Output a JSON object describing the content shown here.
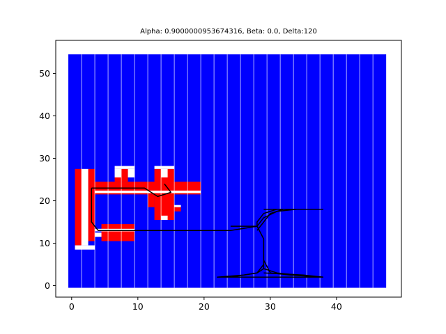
{
  "chart_data": {
    "type": "heatmap",
    "title": "Alpha: 0.9000000953674316, Beta: 0.0, Delta:120",
    "xlabel": "",
    "ylabel": "",
    "xlim": [
      -2.4,
      49.8
    ],
    "ylim": [
      -2.7,
      57.8
    ],
    "xticks": [
      0,
      10,
      20,
      30,
      40
    ],
    "yticks": [
      0,
      10,
      20,
      30,
      40,
      50
    ],
    "grid": false,
    "cell_grid": {
      "x_start": -0.5,
      "x_end": 47.5,
      "y_start": -0.5,
      "y_end": 54.5,
      "base_color": "#0000ff",
      "column_separator_color": "#ffffff",
      "column_separator_every": 2
    },
    "colors": {
      "blue": "#0000ff",
      "red": "#ff0000",
      "white": "#ffffff",
      "path": "#000000"
    },
    "red_regions": [
      [
        0.5,
        1.5,
        9.5,
        27.5
      ],
      [
        2.5,
        3.5,
        10.5,
        27.5
      ],
      [
        3.5,
        19.5,
        21.5,
        24.5
      ],
      [
        4.5,
        9.5,
        10.5,
        14.5
      ],
      [
        6.5,
        8.5,
        24.5,
        27.5
      ],
      [
        12.5,
        15.5,
        15.5,
        27.5
      ],
      [
        11.5,
        12.5,
        18.5,
        21.5
      ],
      [
        15.5,
        16.5,
        17.5,
        18.5
      ]
    ],
    "white_regions": [
      [
        0.5,
        3.5,
        8.5,
        9.5
      ],
      [
        1.5,
        2.5,
        9.5,
        27.5
      ],
      [
        3.5,
        9.5,
        12.8,
        13.4
      ],
      [
        3.5,
        19.5,
        21.8,
        22.4
      ],
      [
        3.5,
        4.5,
        11.5,
        12.5
      ],
      [
        6.5,
        9.5,
        27.5,
        28.2
      ],
      [
        6.5,
        7.5,
        25.5,
        27.5
      ],
      [
        8.5,
        9.5,
        25.5,
        27.5
      ],
      [
        12.5,
        15.5,
        27.5,
        28.2
      ],
      [
        13.5,
        14.5,
        25.5,
        27.5
      ],
      [
        13.5,
        14.5,
        15.5,
        16.5
      ],
      [
        15.5,
        16.5,
        18.5,
        19.0
      ]
    ],
    "paths": [
      [
        [
          3,
          23
        ],
        [
          11,
          23
        ],
        [
          13,
          21
        ],
        [
          15,
          22
        ],
        [
          14,
          24
        ]
      ],
      [
        [
          3,
          23
        ],
        [
          3,
          15
        ],
        [
          4,
          13
        ],
        [
          24,
          13
        ],
        [
          28,
          14
        ],
        [
          29,
          11
        ],
        [
          29,
          4
        ],
        [
          28,
          3
        ],
        [
          24,
          2
        ],
        [
          22,
          2
        ],
        [
          38,
          2
        ]
      ],
      [
        [
          24,
          14
        ],
        [
          28,
          14
        ],
        [
          28,
          15
        ],
        [
          29,
          17
        ],
        [
          31,
          18
        ],
        [
          38,
          18
        ]
      ],
      [
        [
          29,
          18
        ],
        [
          38,
          18
        ]
      ],
      [
        [
          28,
          14
        ],
        [
          29,
          16
        ],
        [
          31,
          17.5
        ],
        [
          34,
          18
        ]
      ],
      [
        [
          28,
          13
        ],
        [
          29,
          15
        ],
        [
          30,
          17
        ],
        [
          32,
          18
        ]
      ],
      [
        [
          29,
          6
        ],
        [
          30,
          3
        ],
        [
          33,
          2.5
        ],
        [
          38,
          2
        ]
      ],
      [
        [
          29,
          5
        ],
        [
          28,
          3
        ],
        [
          26,
          2.5
        ],
        [
          22,
          2
        ]
      ],
      [
        [
          29,
          3
        ],
        [
          35,
          2.5
        ],
        [
          38,
          2
        ]
      ],
      [
        [
          29,
          4
        ],
        [
          31,
          3
        ],
        [
          36,
          2.2
        ]
      ]
    ]
  }
}
